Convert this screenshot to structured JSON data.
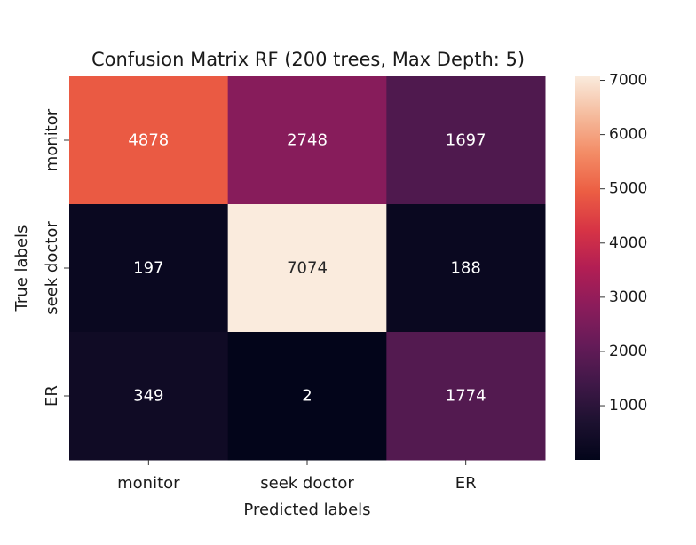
{
  "chart_data": {
    "type": "heatmap",
    "title": "Confusion Matrix RF (200 trees, Max Depth: 5)",
    "xlabel": "Predicted labels",
    "ylabel": "True labels",
    "x_categories": [
      "monitor",
      "seek doctor",
      "ER"
    ],
    "y_categories": [
      "monitor",
      "seek doctor",
      "ER"
    ],
    "values": [
      [
        4878,
        2748,
        1697
      ],
      [
        197,
        7074,
        188
      ],
      [
        349,
        2,
        1774
      ]
    ],
    "colormap": "rocket",
    "colorbar": {
      "range": [
        2,
        7074
      ],
      "ticks": [
        1000,
        2000,
        3000,
        4000,
        5000,
        6000,
        7000
      ]
    }
  }
}
